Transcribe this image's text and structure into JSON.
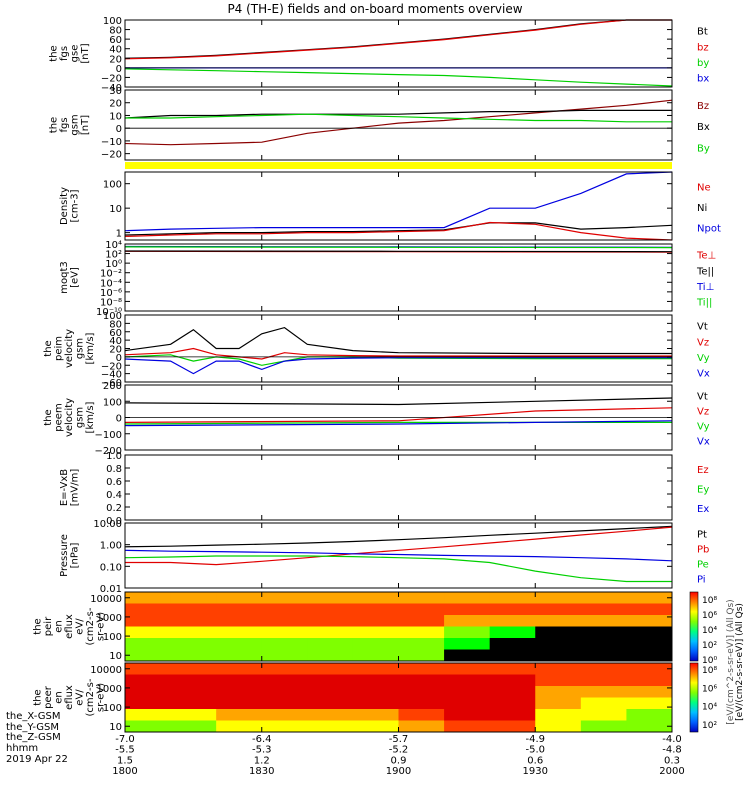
{
  "title": "P4 (TH-E) fields and on-board moments overview",
  "colors": {
    "black": "#000000",
    "red": "#e00000",
    "green": "#00d000",
    "blue": "#0000e0",
    "yellow": "#ffff00",
    "dark_red": "#8b0000"
  },
  "chart_data": [
    {
      "id": "fgs-gse",
      "type": "line",
      "ylabel": [
        "the",
        "fgs",
        "gse",
        "[nT]"
      ],
      "ylim": [
        -40,
        100
      ],
      "yticks": [
        "100",
        "80",
        "60",
        "40",
        "20",
        "0",
        "−20",
        "−40"
      ],
      "yticks_values": [
        100,
        80,
        60,
        40,
        20,
        0,
        -20,
        -40
      ],
      "x": [
        1800,
        1810,
        1820,
        1830,
        1840,
        1850,
        1900,
        1910,
        1920,
        1930,
        1940,
        1950,
        2000
      ],
      "series": [
        {
          "name": "Bt",
          "color": "#000000",
          "values": [
            20,
            22,
            26,
            32,
            38,
            44,
            52,
            60,
            70,
            80,
            92,
            104,
            115
          ]
        },
        {
          "name": "bz",
          "color": "#e00000",
          "values": [
            19,
            21,
            25,
            31,
            37,
            43,
            51,
            59,
            69,
            79,
            91,
            103,
            114
          ]
        },
        {
          "name": "by",
          "color": "#00d000",
          "values": [
            -2,
            -4,
            -6,
            -8,
            -10,
            -12,
            -14,
            -16,
            -20,
            -25,
            -30,
            -34,
            -38
          ]
        },
        {
          "name": "bx",
          "color": "#0000e0",
          "values": [
            0,
            0,
            0,
            0,
            0,
            0,
            0,
            0,
            0,
            0,
            0,
            0,
            0
          ]
        }
      ],
      "legend": [
        [
          "Bt",
          "#000000"
        ],
        [
          "bz",
          "#e00000"
        ],
        [
          "by",
          "#00d000"
        ],
        [
          "bx",
          "#0000e0"
        ]
      ]
    },
    {
      "id": "fgs-gsm",
      "type": "line",
      "ylabel": [
        "the",
        "fgs",
        "gsm",
        "[nT]"
      ],
      "ylim": [
        -25,
        30
      ],
      "yticks": [
        "30",
        "20",
        "10",
        "0",
        "−10",
        "−20"
      ],
      "yticks_values": [
        30,
        20,
        10,
        0,
        -10,
        -20
      ],
      "x": [
        1800,
        1810,
        1820,
        1830,
        1840,
        1850,
        1900,
        1910,
        1920,
        1930,
        1940,
        1950,
        2000
      ],
      "series": [
        {
          "name": "Bz",
          "color": "#8b0000",
          "values": [
            -12,
            -13,
            -12,
            -11,
            -4,
            0,
            4,
            6,
            9,
            12,
            15,
            18,
            22
          ]
        },
        {
          "name": "Bx",
          "color": "#000000",
          "values": [
            8,
            10,
            10,
            11,
            11,
            11,
            11,
            12,
            13,
            13,
            14,
            14,
            14
          ]
        },
        {
          "name": "By",
          "color": "#00d000",
          "values": [
            8,
            8,
            9,
            10,
            11,
            10,
            9,
            8,
            7,
            6,
            6,
            5,
            5
          ]
        }
      ],
      "legend": [
        [
          "Bz",
          "#8b0000"
        ],
        [
          "Bx",
          "#000000"
        ],
        [
          "By",
          "#00d000"
        ]
      ]
    },
    {
      "id": "density",
      "type": "line",
      "scale": "log",
      "ylabel": [
        "Density",
        "[cm-3]"
      ],
      "ylim": [
        0.5,
        300
      ],
      "yticks": [
        "100",
        "10",
        "1"
      ],
      "yticks_values": [
        100,
        10,
        1
      ],
      "x": [
        1800,
        1810,
        1820,
        1830,
        1840,
        1850,
        1900,
        1910,
        1920,
        1930,
        1940,
        1950,
        2000
      ],
      "series": [
        {
          "name": "Npot",
          "color": "#0000e0",
          "values": [
            1.2,
            1.4,
            1.5,
            1.6,
            1.6,
            1.6,
            1.6,
            1.6,
            10,
            10,
            40,
            250,
            300
          ]
        },
        {
          "name": "Ni",
          "color": "#000000",
          "values": [
            0.8,
            0.9,
            1.0,
            1.0,
            1.1,
            1.1,
            1.2,
            1.3,
            2.5,
            2.5,
            1.4,
            1.6,
            2.0
          ]
        },
        {
          "name": "Ne",
          "color": "#e00000",
          "values": [
            0.7,
            0.8,
            0.9,
            0.9,
            1.0,
            1.0,
            1.1,
            1.2,
            2.6,
            2.2,
            1.0,
            0.6,
            0.5
          ]
        }
      ],
      "legend": [
        [
          "Ne",
          "#e00000"
        ],
        [
          "Ni",
          "#000000"
        ],
        [
          "Npot",
          "#0000e0"
        ]
      ]
    },
    {
      "id": "temperature",
      "type": "line",
      "scale": "log",
      "ylabel": [
        "moqt3",
        "[eV]"
      ],
      "ylim": [
        1e-10,
        10000
      ],
      "yticks": [
        "10⁴",
        "10²",
        "10⁰",
        "10⁻²",
        "10⁻⁴",
        "10⁻⁶",
        "10⁻⁸",
        "10⁻¹⁰"
      ],
      "yticks_values": [
        10000,
        100,
        1,
        0.01,
        0.0001,
        1e-06,
        1e-08,
        1e-10
      ],
      "x": [
        1800,
        1900,
        2000
      ],
      "series": [
        {
          "name": "Te⊥",
          "color": "#e00000",
          "values": [
            300,
            250,
            200
          ]
        },
        {
          "name": "Te||",
          "color": "#000000",
          "values": [
            350,
            300,
            250
          ]
        },
        {
          "name": "Ti⊥",
          "color": "#0000e0",
          "values": [
            3000,
            2500,
            2000
          ]
        },
        {
          "name": "Ti||",
          "color": "#00d000",
          "values": [
            2500,
            2000,
            1800
          ]
        }
      ],
      "legend": [
        [
          "Te⊥",
          "#e00000"
        ],
        [
          "Te||",
          "#000000"
        ],
        [
          "Ti⊥",
          "#0000e0"
        ],
        [
          "Ti||",
          "#00d000"
        ]
      ]
    },
    {
      "id": "peim-velocity",
      "type": "line",
      "ylabel": [
        "the",
        "peim",
        "velocity",
        "gsm",
        "[km/s]"
      ],
      "ylim": [
        -60,
        100
      ],
      "yticks": [
        "100",
        "80",
        "60",
        "40",
        "20",
        "0",
        "−20",
        "−40",
        "−60"
      ],
      "yticks_values": [
        100,
        80,
        60,
        40,
        20,
        0,
        -20,
        -40,
        -60
      ],
      "x": [
        1800,
        1810,
        1815,
        1820,
        1825,
        1830,
        1835,
        1840,
        1850,
        1900,
        1930,
        2000
      ],
      "series": [
        {
          "name": "Vt",
          "color": "#000000",
          "values": [
            15,
            30,
            65,
            20,
            20,
            55,
            70,
            30,
            15,
            10,
            8,
            8
          ]
        },
        {
          "name": "Vz",
          "color": "#e00000",
          "values": [
            5,
            10,
            20,
            5,
            0,
            -5,
            10,
            5,
            3,
            2,
            2,
            2
          ]
        },
        {
          "name": "Vy",
          "color": "#00d000",
          "values": [
            0,
            5,
            -10,
            0,
            -5,
            -20,
            -10,
            0,
            0,
            -3,
            -4,
            -4
          ]
        },
        {
          "name": "Vx",
          "color": "#0000e0",
          "values": [
            -5,
            -10,
            -40,
            -10,
            -10,
            -30,
            -10,
            -5,
            -3,
            -2,
            -2,
            -2
          ]
        }
      ],
      "legend": [
        [
          "Vt",
          "#000000"
        ],
        [
          "Vz",
          "#e00000"
        ],
        [
          "Vy",
          "#00d000"
        ],
        [
          "Vx",
          "#0000e0"
        ]
      ]
    },
    {
      "id": "peem-velocity",
      "type": "line",
      "ylabel": [
        "the",
        "peem",
        "velocity",
        "gsm",
        "[km/s]"
      ],
      "ylim": [
        -200,
        200
      ],
      "yticks": [
        "200",
        "100",
        "0",
        "−100",
        "−200"
      ],
      "yticks_values": [
        200,
        100,
        0,
        -100,
        -200
      ],
      "x": [
        1800,
        1900,
        1930,
        2000
      ],
      "series": [
        {
          "name": "Vt",
          "color": "#000000",
          "values": [
            90,
            80,
            100,
            120
          ]
        },
        {
          "name": "Vz",
          "color": "#e00000",
          "values": [
            -30,
            -20,
            40,
            60
          ]
        },
        {
          "name": "Vy",
          "color": "#00d000",
          "values": [
            -40,
            -30,
            -30,
            -30
          ]
        },
        {
          "name": "Vx",
          "color": "#0000e0",
          "values": [
            -50,
            -40,
            -30,
            -20
          ]
        }
      ],
      "legend": [
        [
          "Vt",
          "#000000"
        ],
        [
          "Vz",
          "#e00000"
        ],
        [
          "Vy",
          "#00d000"
        ],
        [
          "Vx",
          "#0000e0"
        ]
      ]
    },
    {
      "id": "e-field",
      "type": "line",
      "ylabel": [
        "E=-VxB",
        "[mV/m]"
      ],
      "ylim": [
        0,
        1
      ],
      "yticks": [
        "1.0",
        "0.8",
        "0.6",
        "0.4",
        "0.2",
        "0.0"
      ],
      "yticks_values": [
        1.0,
        0.8,
        0.6,
        0.4,
        0.2,
        0.0
      ],
      "x": [],
      "series": [],
      "legend": [
        [
          "Ez",
          "#e00000"
        ],
        [
          "Ey",
          "#00d000"
        ],
        [
          "Ex",
          "#0000e0"
        ]
      ]
    },
    {
      "id": "pressure",
      "type": "line",
      "scale": "log",
      "ylabel": [
        "Pressure",
        "[nPa]"
      ],
      "ylim": [
        0.01,
        10
      ],
      "yticks": [
        "10.00",
        "1.00",
        "0.10",
        "0.01"
      ],
      "yticks_values": [
        10,
        1,
        0.1,
        0.01
      ],
      "x": [
        1800,
        1810,
        1820,
        1830,
        1840,
        1850,
        1900,
        1910,
        1920,
        1930,
        1940,
        1950,
        2000
      ],
      "series": [
        {
          "name": "Pt",
          "color": "#000000",
          "values": [
            0.8,
            0.85,
            0.95,
            1.05,
            1.2,
            1.4,
            1.7,
            2.1,
            2.7,
            3.4,
            4.3,
            5.5,
            7.0
          ]
        },
        {
          "name": "Pb",
          "color": "#e00000",
          "values": [
            0.15,
            0.15,
            0.12,
            0.17,
            0.25,
            0.38,
            0.55,
            0.8,
            1.2,
            1.8,
            2.8,
            4.2,
            6.5
          ]
        },
        {
          "name": "Pe",
          "color": "#00d000",
          "values": [
            0.25,
            0.27,
            0.3,
            0.3,
            0.3,
            0.28,
            0.25,
            0.22,
            0.15,
            0.06,
            0.03,
            0.02,
            0.02
          ]
        },
        {
          "name": "Pi",
          "color": "#0000e0",
          "values": [
            0.55,
            0.5,
            0.48,
            0.45,
            0.42,
            0.38,
            0.35,
            0.32,
            0.3,
            0.28,
            0.25,
            0.22,
            0.18
          ]
        }
      ],
      "legend": [
        [
          "Pt",
          "#000000"
        ],
        [
          "Pb",
          "#e00000"
        ],
        [
          "Pe",
          "#00d000"
        ],
        [
          "Pi",
          "#0000e0"
        ]
      ]
    },
    {
      "id": "peir-eflux",
      "type": "heatmap",
      "scale": "log",
      "ylabel": [
        "the",
        "peir",
        "en",
        "eflux",
        "eV/",
        "(cm2-s-",
        "sr-eV)"
      ],
      "ylim": [
        5,
        20000
      ],
      "yticks": [
        "10000",
        "1000",
        "100",
        "10"
      ],
      "yticks_values": [
        10000,
        1000,
        100,
        10
      ],
      "x_bins": [
        1800,
        1810,
        1820,
        1830,
        1840,
        1850,
        1900,
        1910,
        1920,
        1930,
        1940,
        1950,
        2000
      ],
      "y_bins": [
        8000,
        3000,
        800,
        200,
        50,
        15
      ],
      "z_levels": [
        [
          4,
          4,
          4,
          4,
          4,
          4,
          4,
          4,
          4,
          4,
          4,
          4,
          4
        ],
        [
          5,
          5,
          5,
          5,
          5,
          5,
          5,
          5,
          5,
          5,
          5,
          5,
          5
        ],
        [
          5,
          5,
          5,
          5,
          5,
          5,
          5,
          4,
          4,
          4,
          4,
          4,
          4
        ],
        [
          3,
          3,
          3,
          3,
          3,
          3,
          3,
          2,
          1,
          0,
          0,
          0,
          0
        ],
        [
          2,
          2,
          2,
          2,
          2,
          2,
          2,
          1,
          0,
          0,
          0,
          0,
          0
        ],
        [
          2,
          2,
          2,
          2,
          2,
          2,
          2,
          0,
          0,
          0,
          0,
          0,
          0
        ]
      ]
    },
    {
      "id": "peer-eflux",
      "type": "heatmap",
      "scale": "log",
      "ylabel": [
        "the",
        "peer",
        "en",
        "eflux",
        "eV/",
        "(cm2-s-",
        "sr-eV)"
      ],
      "ylim": [
        5,
        20000
      ],
      "yticks": [
        "10000",
        "1000",
        "100",
        "10"
      ],
      "yticks_values": [
        10000,
        1000,
        100,
        10
      ],
      "x_bins": [
        1800,
        1810,
        1820,
        1830,
        1840,
        1850,
        1900,
        1910,
        1920,
        1930,
        1940,
        1950,
        2000
      ],
      "y_bins": [
        8000,
        3000,
        800,
        200,
        50,
        15
      ],
      "z_levels": [
        [
          5,
          5,
          5,
          5,
          5,
          5,
          5,
          5,
          5,
          5,
          5,
          5,
          5
        ],
        [
          6,
          6,
          6,
          6,
          6,
          6,
          6,
          6,
          6,
          5,
          5,
          5,
          5
        ],
        [
          6,
          6,
          6,
          6,
          6,
          6,
          6,
          6,
          6,
          4,
          4,
          4,
          4
        ],
        [
          6,
          6,
          6,
          6,
          6,
          6,
          6,
          6,
          6,
          4,
          3,
          3,
          3
        ],
        [
          3,
          3,
          4,
          4,
          4,
          4,
          5,
          6,
          6,
          3,
          3,
          2,
          2
        ],
        [
          2,
          2,
          3,
          3,
          3,
          3,
          4,
          5,
          5,
          3,
          2,
          2,
          2
        ]
      ]
    }
  ],
  "colorbar": {
    "label": "[eV/(cm2-s-sr-eV)] (All Qs)",
    "label_back": "[eV/(cm^2-s-sr-eV)] (All Qs)",
    "ticks_peir": [
      "10⁸",
      "10⁶",
      "10⁴",
      "10²",
      "10⁰"
    ],
    "ticks_peer": [
      "10⁸",
      "10⁶",
      "10⁴",
      "10²"
    ]
  },
  "xaxis": {
    "ticks": [
      "1800",
      "1830",
      "1900",
      "1930",
      "2000"
    ],
    "ticks_values": [
      1800,
      1830,
      1900,
      1930,
      2000
    ],
    "rows": [
      {
        "label": "the_X-GSM",
        "values": [
          "-7.0",
          "-6.4",
          "-5.7",
          "-4.9",
          "-4.0"
        ]
      },
      {
        "label": "the_Y-GSM",
        "values": [
          "-5.5",
          "-5.3",
          "-5.2",
          "-5.0",
          "-4.8"
        ]
      },
      {
        "label": "the_Z-GSM",
        "values": [
          "1.5",
          "1.2",
          "0.9",
          "0.6",
          "0.3"
        ]
      },
      {
        "label": "hhmm",
        "values": [
          "1800",
          "1830",
          "1900",
          "1930",
          "2000"
        ]
      }
    ],
    "date": "2019 Apr 22"
  }
}
